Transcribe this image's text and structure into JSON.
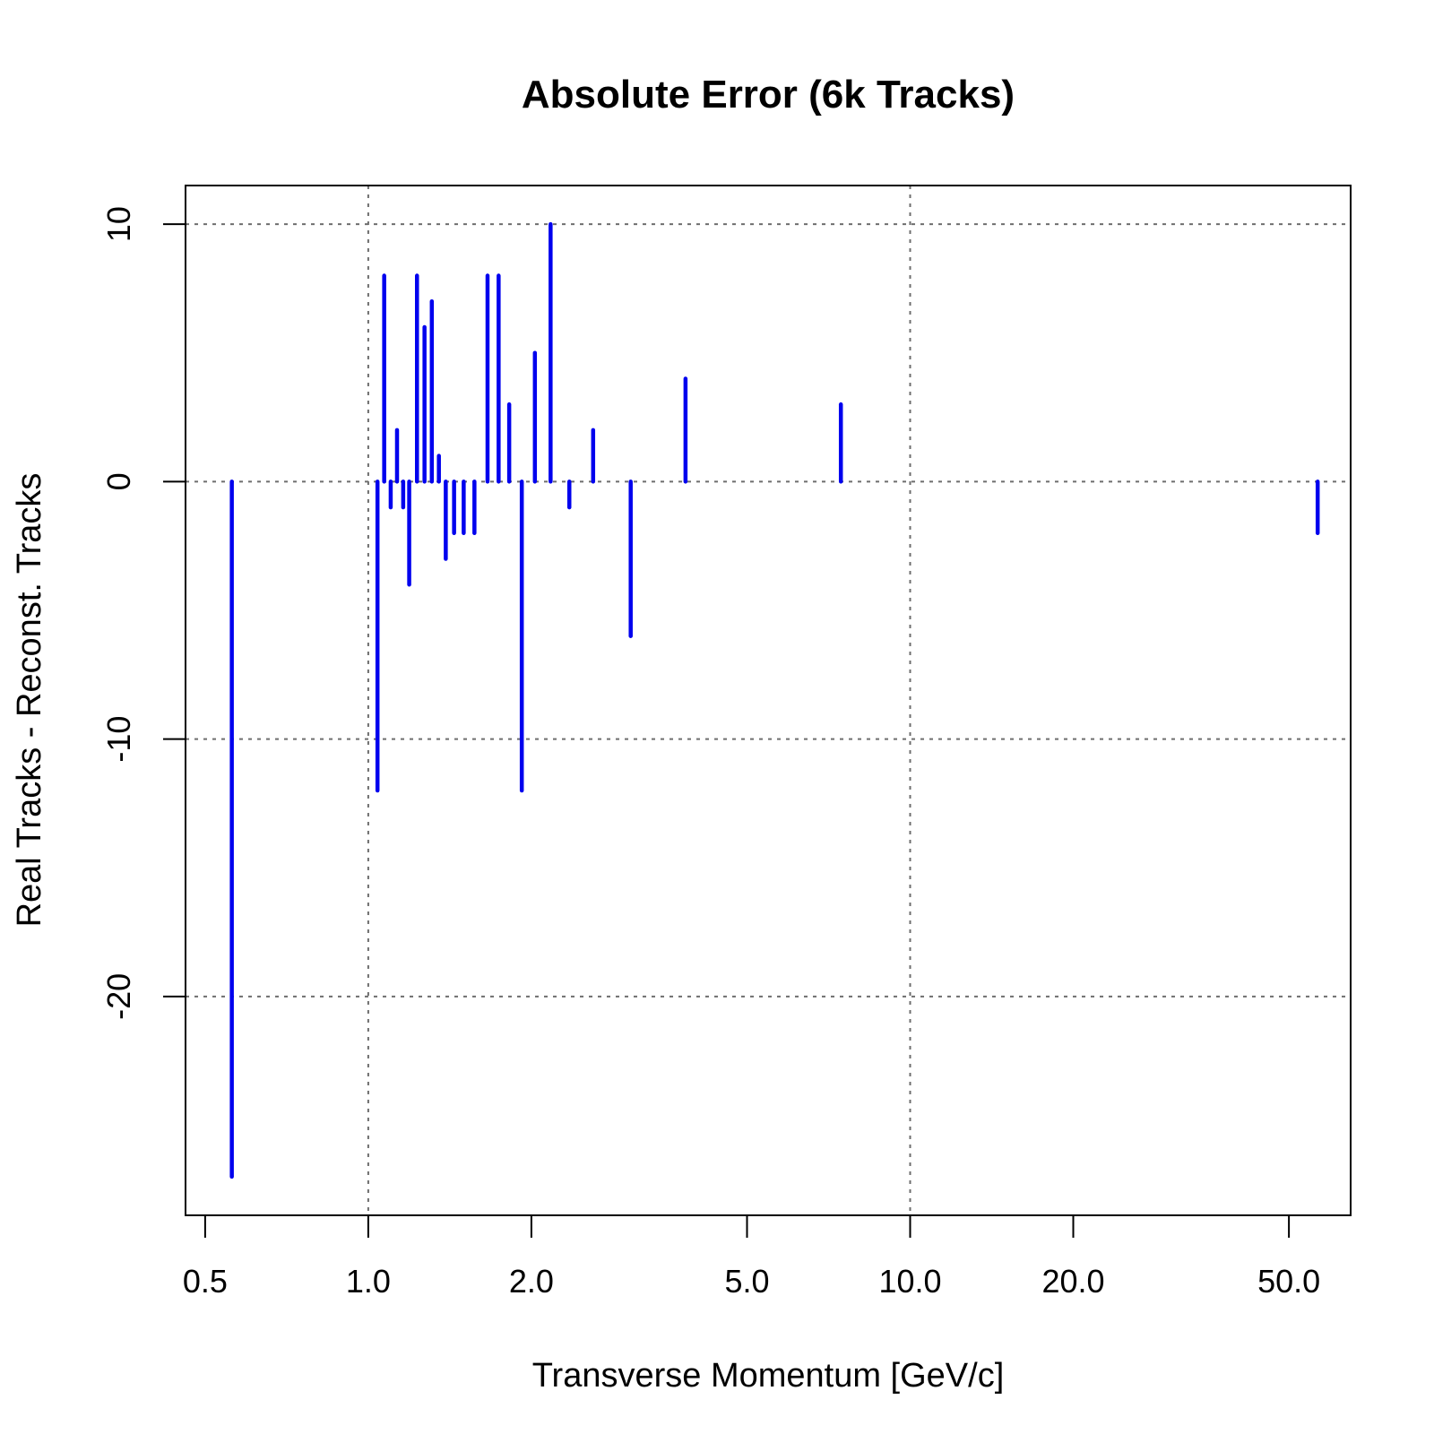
{
  "chart_data": {
    "type": "bar",
    "title": "Absolute Error (6k Tracks)",
    "xlabel": "Transverse Momentum [GeV/c]",
    "ylabel": "Real Tracks - Reconst. Tracks",
    "x_scale": "log",
    "xlim": [
      0.46,
      65
    ],
    "ylim": [
      -28.5,
      11.5
    ],
    "x_ticks": [
      {
        "value": 0.5,
        "label": "0.5"
      },
      {
        "value": 1.0,
        "label": "1.0"
      },
      {
        "value": 2.0,
        "label": "2.0"
      },
      {
        "value": 5.0,
        "label": "5.0"
      },
      {
        "value": 10.0,
        "label": "10.0"
      },
      {
        "value": 20.0,
        "label": "20.0"
      },
      {
        "value": 50.0,
        "label": "50.0"
      }
    ],
    "y_ticks": [
      {
        "value": 10,
        "label": "10"
      },
      {
        "value": 0,
        "label": "0"
      },
      {
        "value": -10,
        "label": "-10"
      },
      {
        "value": -20,
        "label": "-20"
      }
    ],
    "x_grid": [
      1.0,
      10.0
    ],
    "y_grid": [
      10,
      0,
      -10,
      -20
    ],
    "grid": true,
    "color": "#0000ee",
    "points": [
      {
        "x": 0.56,
        "y": -27
      },
      {
        "x": 1.04,
        "y": -12
      },
      {
        "x": 1.07,
        "y": 8
      },
      {
        "x": 1.1,
        "y": -1
      },
      {
        "x": 1.13,
        "y": 2
      },
      {
        "x": 1.16,
        "y": -1
      },
      {
        "x": 1.19,
        "y": -4
      },
      {
        "x": 1.23,
        "y": 8
      },
      {
        "x": 1.27,
        "y": 6
      },
      {
        "x": 1.31,
        "y": 7
      },
      {
        "x": 1.35,
        "y": 1
      },
      {
        "x": 1.39,
        "y": -3
      },
      {
        "x": 1.44,
        "y": -2
      },
      {
        "x": 1.5,
        "y": -2
      },
      {
        "x": 1.57,
        "y": -2
      },
      {
        "x": 1.66,
        "y": 8
      },
      {
        "x": 1.74,
        "y": 8
      },
      {
        "x": 1.82,
        "y": 3
      },
      {
        "x": 1.92,
        "y": -12
      },
      {
        "x": 2.03,
        "y": 5
      },
      {
        "x": 2.17,
        "y": 10
      },
      {
        "x": 2.35,
        "y": -1
      },
      {
        "x": 2.6,
        "y": 2
      },
      {
        "x": 3.05,
        "y": -6
      },
      {
        "x": 3.85,
        "y": 4
      },
      {
        "x": 7.45,
        "y": 3
      },
      {
        "x": 56.5,
        "y": -2
      }
    ]
  }
}
